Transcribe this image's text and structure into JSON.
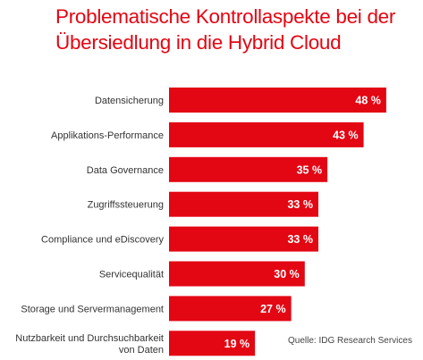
{
  "chart_data": {
    "type": "bar",
    "orientation": "horizontal",
    "title_lines": [
      "Problematische Kontrollaspekte bei der",
      "Übersiedlung in die Hybrid Cloud"
    ],
    "categories": [
      [
        "Datensicherung"
      ],
      [
        "Applikations-Performance"
      ],
      [
        "Data Governance"
      ],
      [
        "Zugriffssteuerung"
      ],
      [
        "Compliance und eDiscovery"
      ],
      [
        "Servicequalität"
      ],
      [
        "Storage und Servermanagement"
      ],
      [
        "Nutzbarkeit und Durchsuchbarkeit",
        "von Daten"
      ]
    ],
    "values": [
      48,
      43,
      35,
      33,
      33,
      30,
      27,
      19
    ],
    "value_labels": [
      "48 %",
      "43 %",
      "35 %",
      "33 %",
      "33 %",
      "30 %",
      "27 %",
      "19 %"
    ],
    "unit": "%",
    "bar_color": "#e30613",
    "title_color": "#e30613",
    "source": "Quelle: IDG Research Services",
    "grid": false,
    "legend": "none"
  }
}
